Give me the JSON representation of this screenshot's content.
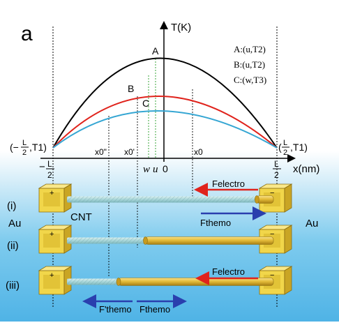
{
  "figure": {
    "panel_label": "a",
    "y_axis_label": "T(K)",
    "x_axis_label": "x(nm)",
    "origin_label": "0",
    "x_ticks": {
      "left_minus": "−",
      "left_num": "L",
      "left_den": "2",
      "right_num": "L",
      "right_den": "2",
      "x0_double_prime": "x0\"",
      "x0_prime": "x0'",
      "x0": "x0",
      "w": "w",
      "u": "u"
    },
    "endpoint_labels": {
      "left_prefix": "(−",
      "left_frac_num": "L",
      "left_frac_den": "2",
      "left_suffix": ",T1)",
      "right_prefix": "(",
      "right_frac_num": "L",
      "right_frac_den": "2",
      "right_suffix": ",T1)"
    },
    "curves": [
      {
        "label": "A",
        "color": "#000000",
        "peak_T_rel": 1.0
      },
      {
        "label": "B",
        "color": "#e0231c",
        "peak_T_rel": 0.66
      },
      {
        "label": "C",
        "color": "#35a6d3",
        "peak_T_rel": 0.56
      }
    ],
    "legend": [
      {
        "text": "A:(u,T2)"
      },
      {
        "text": "B:(u,T2)"
      },
      {
        "text": "C:(w,T3)"
      }
    ]
  },
  "devices": [
    {
      "label": "(i)",
      "transition_fraction": 0.92
    },
    {
      "label": "(ii)",
      "transition_fraction": 0.38
    },
    {
      "label": "(iii)",
      "transition_fraction": 0.25
    }
  ],
  "annotations": {
    "au_left": "Au",
    "au_right": "Au",
    "cnt": "CNT",
    "plus": "+",
    "minus": "−",
    "f_electro_i": "Felectro",
    "f_themo_i": "Fthemo",
    "f_electro_iii": "Felectro",
    "f_themo_prime_iii": "F'themo",
    "f_themo_iii": "Fthemo"
  },
  "colors": {
    "background_top": "#ffffff",
    "background_bottom": "#4fb3e6",
    "gold": "#e5bd3a",
    "gold_dark": "#a67d12",
    "electrode": "#f1d64a",
    "tube": "#a8d6d9",
    "force_red": "#e0231c",
    "force_blue": "#2a3fae"
  }
}
